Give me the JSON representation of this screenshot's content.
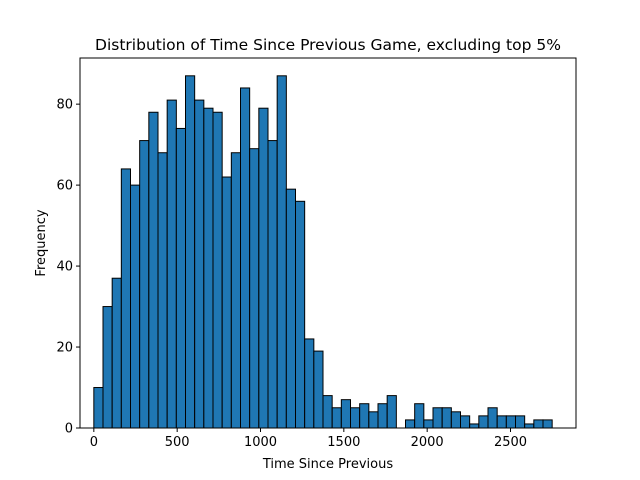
{
  "chart_data": {
    "type": "bar",
    "title": "Distribution of Time Since Previous Game, excluding top 5%",
    "xlabel": "Time Since Previous",
    "ylabel": "Frequency",
    "xlim": [
      -83,
      2893
    ],
    "ylim": [
      0,
      91.4
    ],
    "xticks": [
      0,
      500,
      1000,
      1500,
      2000,
      2500
    ],
    "yticks": [
      0,
      20,
      40,
      60,
      80
    ],
    "grid": false,
    "bar_color": "#1f77b4",
    "edge_color": "#000000",
    "bin_width": 55,
    "bin_start": 0,
    "values": [
      10,
      30,
      37,
      64,
      60,
      71,
      78,
      68,
      81,
      74,
      87,
      81,
      79,
      78,
      62,
      68,
      84,
      69,
      79,
      71,
      87,
      59,
      56,
      22,
      19,
      8,
      5,
      7,
      5,
      6,
      4,
      6,
      8,
      0,
      2,
      6,
      2,
      5,
      5,
      4,
      3,
      1,
      3,
      5,
      3,
      3,
      3,
      1,
      2,
      2
    ]
  }
}
